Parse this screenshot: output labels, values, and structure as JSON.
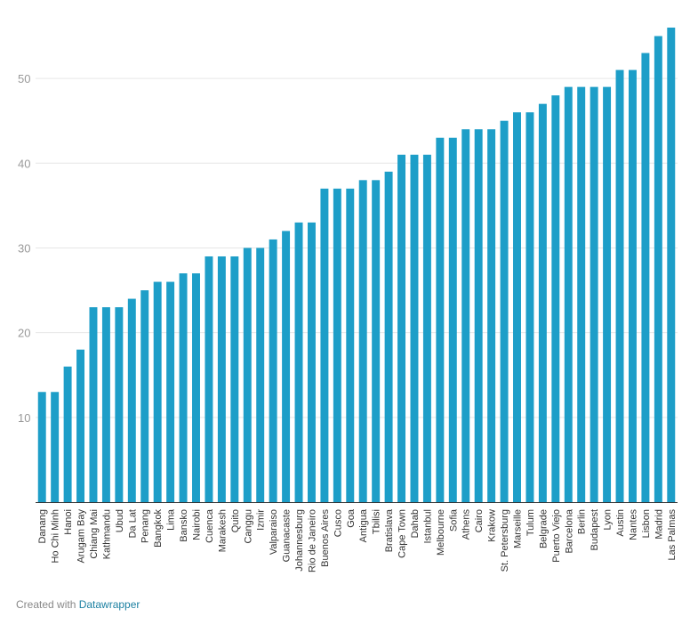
{
  "chart_data": {
    "type": "bar",
    "title": "",
    "xlabel": "",
    "ylabel": "",
    "ylim": [
      0,
      56
    ],
    "yticks": [
      10,
      20,
      30,
      40,
      50
    ],
    "grid": true,
    "bar_color": "#1d9ec8",
    "categories": [
      "Danang",
      "Ho Chi Minh",
      "Hanoi",
      "Arugam Bay",
      "Chiang Mai",
      "Kathmandu",
      "Ubud",
      "Da Lat",
      "Penang",
      "Bangkok",
      "Lima",
      "Bansko",
      "Nairobi",
      "Cuenca",
      "Marakesh",
      "Quito",
      "Canggu",
      "Izmir",
      "Valparaiso",
      "Guanacaste",
      "Johannesburg",
      "Rio de Janeiro",
      "Buenos Aires",
      "Cusco",
      "Goa",
      "Antigua",
      "Tbilisi",
      "Bratislava",
      "Cape Town",
      "Dahab",
      "Istanbul",
      "Melbourne",
      "Sofia",
      "Athens",
      "Cairo",
      "Krakow",
      "St. Petersburg",
      "Marseille",
      "Tulum",
      "Belgrade",
      "Puerto Viejo",
      "Barcelona",
      "Berlin",
      "Budapest",
      "Lyon",
      "Austin",
      "Nantes",
      "Lisbon",
      "Madrid",
      "Las Palmas"
    ],
    "values": [
      13,
      13,
      16,
      18,
      23,
      23,
      23,
      24,
      25,
      26,
      26,
      27,
      27,
      29,
      29,
      29,
      30,
      30,
      31,
      32,
      33,
      33,
      37,
      37,
      37,
      38,
      38,
      39,
      41,
      41,
      41,
      43,
      43,
      44,
      44,
      44,
      45,
      46,
      46,
      47,
      48,
      49,
      49,
      49,
      49,
      51,
      51,
      53,
      55,
      56
    ]
  },
  "footer": {
    "prefix": "Created with ",
    "brand": "Datawrapper"
  }
}
